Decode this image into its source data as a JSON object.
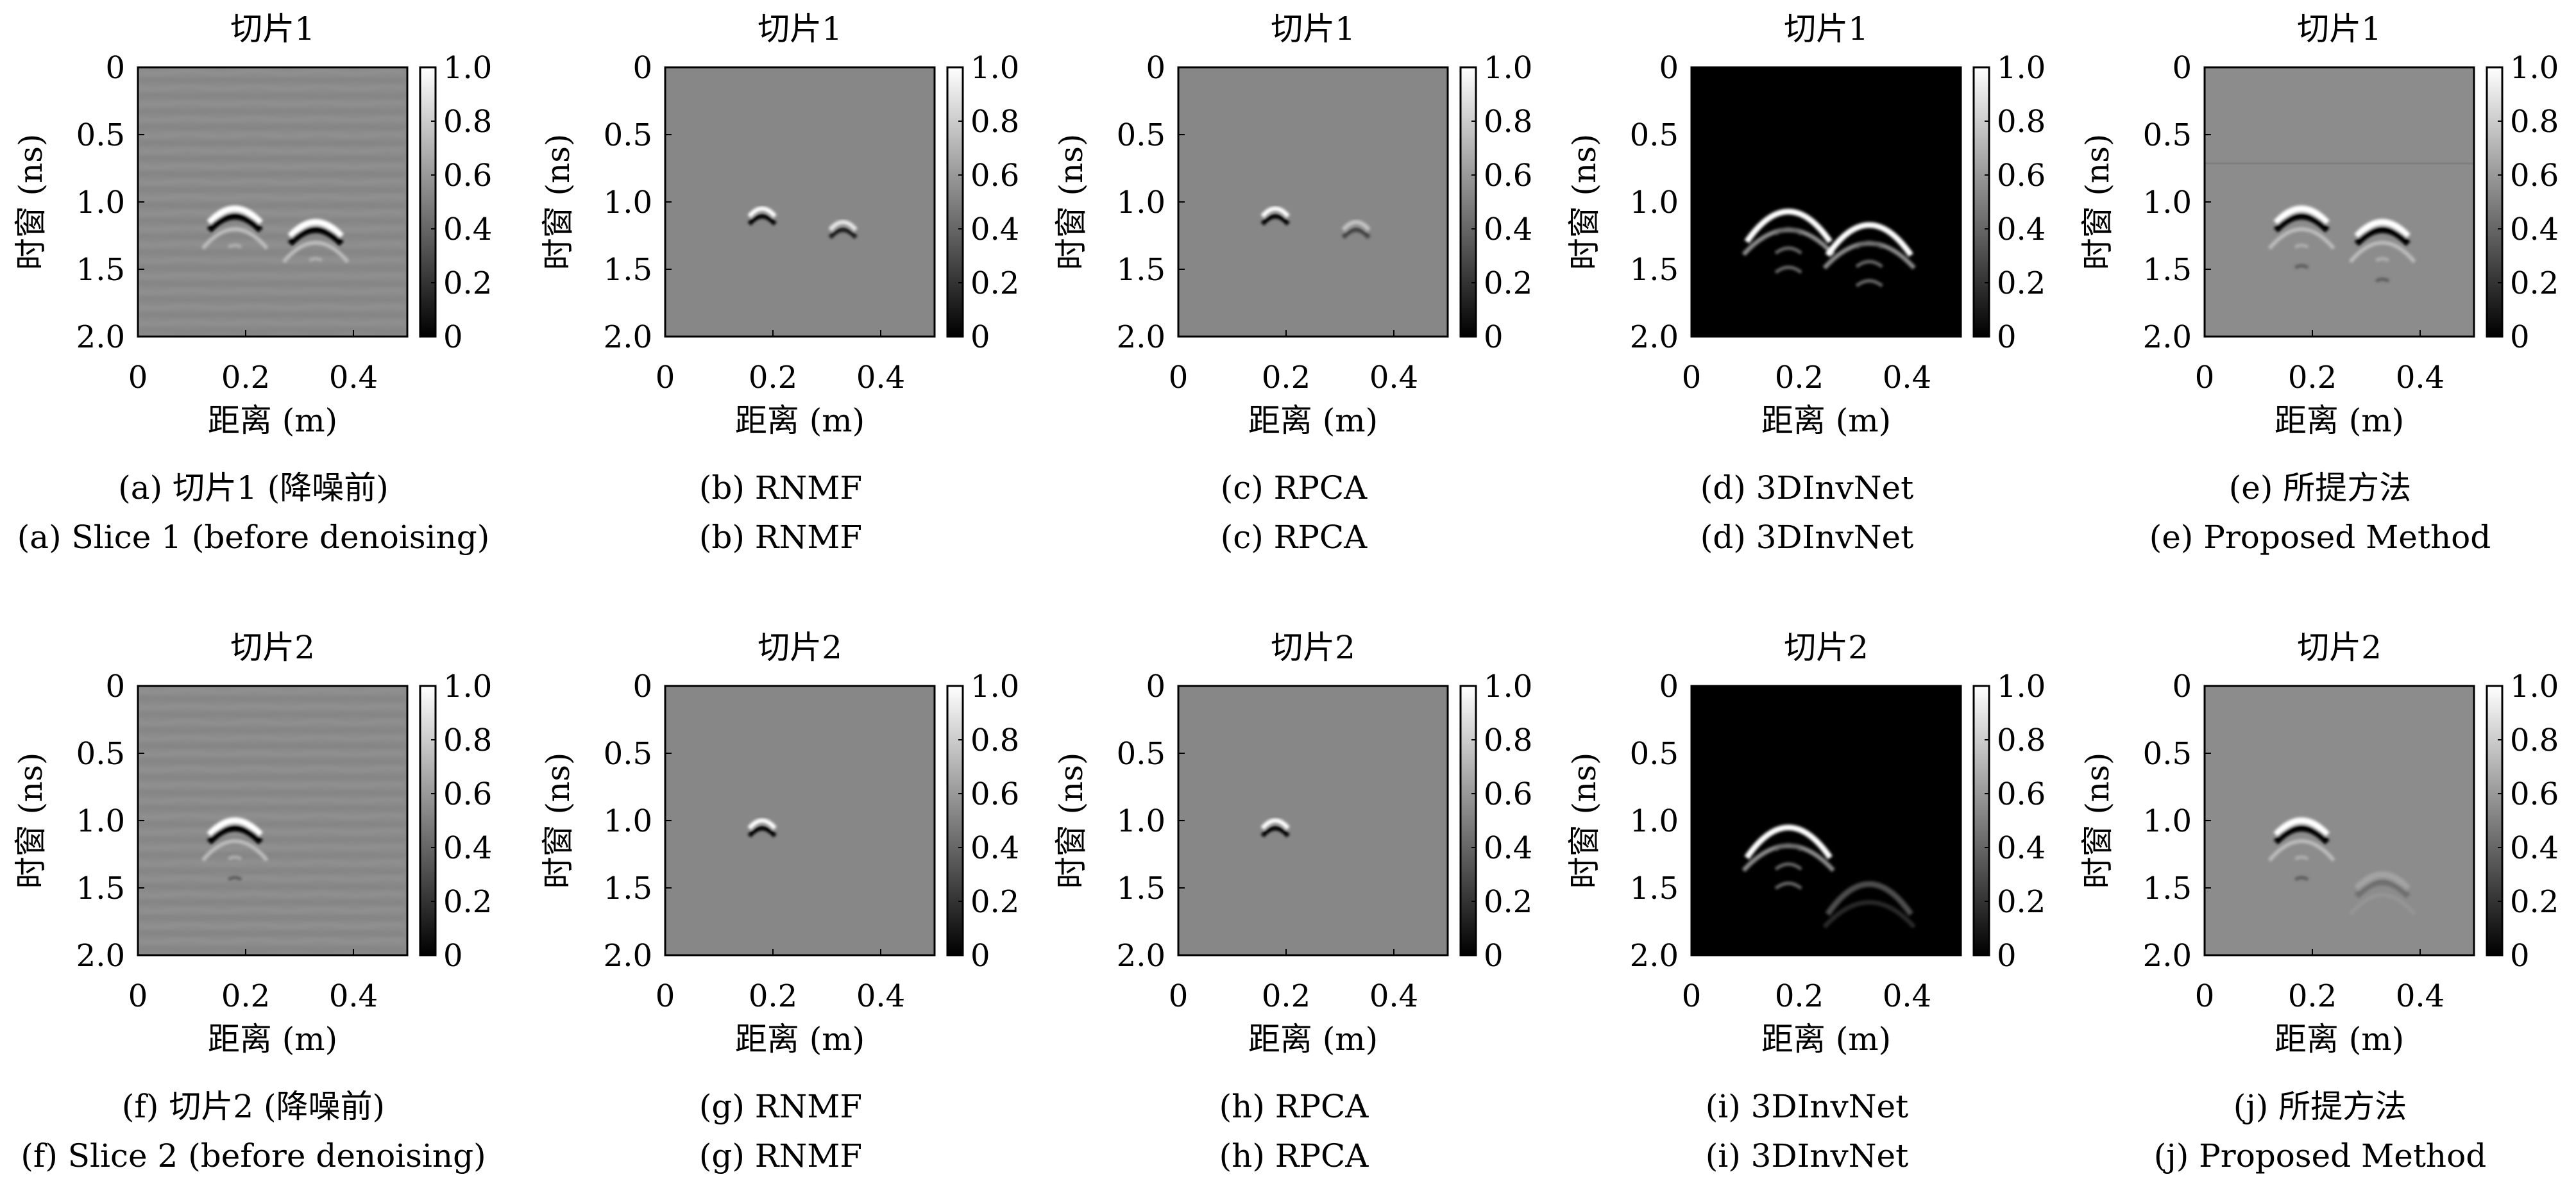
{
  "figure": {
    "x_ticks": [
      "0",
      "0.2",
      "0.4"
    ],
    "y_ticks": [
      "0",
      "0.5",
      "1.0",
      "1.5",
      "2.0"
    ],
    "colorbar_ticks": [
      "0",
      "0.2",
      "0.4",
      "0.6",
      "0.8",
      "1.0"
    ],
    "xlabel": "距离 (m)",
    "ylabel": "时窗 (ns)"
  },
  "chart_data": [
    {
      "type": "heatmap",
      "title": "切片1",
      "caption_cn": "(a) 切片1 (降噪前)",
      "caption_en": "(a) Slice 1 (before denoising)",
      "style": "noisy",
      "xlim": [
        0,
        0.5
      ],
      "ylim": [
        0,
        2.0
      ],
      "zlim": [
        0,
        1.0
      ],
      "hyperbolas": [
        {
          "x": 0.18,
          "t": 1.05,
          "strength": 1.0,
          "tails": 1
        },
        {
          "x": 0.33,
          "t": 1.15,
          "strength": 1.0,
          "tails": 1
        }
      ]
    },
    {
      "type": "heatmap",
      "title": "切片1",
      "caption_cn": "(b) RNMF",
      "caption_en": "(b) RNMF",
      "style": "clean",
      "xlim": [
        0,
        0.5
      ],
      "ylim": [
        0,
        2.0
      ],
      "zlim": [
        0,
        1.0
      ],
      "hyperbolas": [
        {
          "x": 0.18,
          "t": 1.05,
          "strength": 1.0,
          "tails": 0
        },
        {
          "x": 0.33,
          "t": 1.15,
          "strength": 0.8,
          "tails": 0
        }
      ]
    },
    {
      "type": "heatmap",
      "title": "切片1",
      "caption_cn": "(c) RPCA",
      "caption_en": "(c) RPCA",
      "style": "clean",
      "xlim": [
        0,
        0.5
      ],
      "ylim": [
        0,
        2.0
      ],
      "zlim": [
        0,
        1.0
      ],
      "hyperbolas": [
        {
          "x": 0.18,
          "t": 1.05,
          "strength": 1.0,
          "tails": 0
        },
        {
          "x": 0.33,
          "t": 1.15,
          "strength": 0.5,
          "tails": 0
        }
      ]
    },
    {
      "type": "heatmap",
      "title": "切片1",
      "caption_cn": "(d) 3DInvNet",
      "caption_en": "(d) 3DInvNet",
      "style": "dark",
      "xlim": [
        0,
        0.5
      ],
      "ylim": [
        0,
        2.0
      ],
      "zlim": [
        0,
        1.0
      ],
      "hyperbolas": [
        {
          "x": 0.18,
          "t": 1.0,
          "strength": 1.0,
          "tails": 3
        },
        {
          "x": 0.33,
          "t": 1.1,
          "strength": 1.0,
          "tails": 3
        }
      ]
    },
    {
      "type": "heatmap",
      "title": "切片1",
      "caption_cn": "(e) 所提方法",
      "caption_en": "(e) Proposed Method",
      "style": "gray",
      "xlim": [
        0,
        0.5
      ],
      "ylim": [
        0,
        2.0
      ],
      "zlim": [
        0,
        1.0
      ],
      "hyperbolas": [
        {
          "x": 0.18,
          "t": 1.05,
          "strength": 1.0,
          "tails": 2
        },
        {
          "x": 0.33,
          "t": 1.15,
          "strength": 1.0,
          "tails": 2
        }
      ]
    },
    {
      "type": "heatmap",
      "title": "切片2",
      "caption_cn": "(f) 切片2 (降噪前)",
      "caption_en": "(f) Slice 2 (before denoising)",
      "style": "noisy",
      "xlim": [
        0,
        0.5
      ],
      "ylim": [
        0,
        2.0
      ],
      "zlim": [
        0,
        1.0
      ],
      "hyperbolas": [
        {
          "x": 0.18,
          "t": 1.0,
          "strength": 1.0,
          "tails": 2
        }
      ]
    },
    {
      "type": "heatmap",
      "title": "切片2",
      "caption_cn": "(g) RNMF",
      "caption_en": "(g) RNMF",
      "style": "clean",
      "xlim": [
        0,
        0.5
      ],
      "ylim": [
        0,
        2.0
      ],
      "zlim": [
        0,
        1.0
      ],
      "hyperbolas": [
        {
          "x": 0.18,
          "t": 1.0,
          "strength": 1.0,
          "tails": 0
        }
      ]
    },
    {
      "type": "heatmap",
      "title": "切片2",
      "caption_cn": "(h) RPCA",
      "caption_en": "(h) RPCA",
      "style": "clean",
      "xlim": [
        0,
        0.5
      ],
      "ylim": [
        0,
        2.0
      ],
      "zlim": [
        0,
        1.0
      ],
      "hyperbolas": [
        {
          "x": 0.18,
          "t": 1.0,
          "strength": 1.0,
          "tails": 0
        }
      ]
    },
    {
      "type": "heatmap",
      "title": "切片2",
      "caption_cn": "(i) 3DInvNet",
      "caption_en": "(i) 3DInvNet",
      "style": "dark",
      "xlim": [
        0,
        0.5
      ],
      "ylim": [
        0,
        2.0
      ],
      "zlim": [
        0,
        1.0
      ],
      "hyperbolas": [
        {
          "x": 0.18,
          "t": 0.98,
          "strength": 1.0,
          "tails": 3
        },
        {
          "x": 0.33,
          "t": 1.4,
          "strength": 0.3,
          "tails": 0
        }
      ]
    },
    {
      "type": "heatmap",
      "title": "切片2",
      "caption_cn": "(j) 所提方法",
      "caption_en": "(j) Proposed Method",
      "style": "gray",
      "xlim": [
        0,
        0.5
      ],
      "ylim": [
        0,
        2.0
      ],
      "zlim": [
        0,
        1.0
      ],
      "hyperbolas": [
        {
          "x": 0.18,
          "t": 1.0,
          "strength": 1.0,
          "tails": 2
        },
        {
          "x": 0.33,
          "t": 1.4,
          "strength": 0.2,
          "tails": 0
        }
      ]
    }
  ]
}
